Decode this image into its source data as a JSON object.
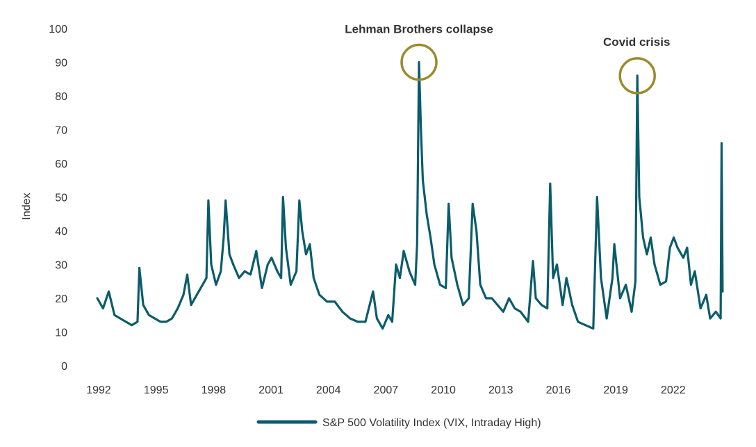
{
  "chart_data": {
    "type": "line",
    "title": "",
    "xlabel": "",
    "ylabel": "Index",
    "ylim": [
      0,
      100
    ],
    "xlim": [
      1992,
      2024.8
    ],
    "yticks": [
      0,
      10,
      20,
      30,
      40,
      50,
      60,
      70,
      80,
      90,
      100
    ],
    "xticks": [
      1992,
      1995,
      1998,
      2001,
      2004,
      2007,
      2010,
      2013,
      2016,
      2019,
      2022
    ],
    "grid": false,
    "legend": {
      "position": "bottom-center"
    },
    "series": [
      {
        "name": "S&P 500 Volatility Index (VIX, Intraday High)",
        "color": "#0b5c6b",
        "points": [
          [
            1992.0,
            20
          ],
          [
            1992.3,
            17
          ],
          [
            1992.6,
            22
          ],
          [
            1992.9,
            15
          ],
          [
            1993.2,
            14
          ],
          [
            1993.5,
            13
          ],
          [
            1993.8,
            12
          ],
          [
            1994.1,
            13
          ],
          [
            1994.2,
            29
          ],
          [
            1994.4,
            18
          ],
          [
            1994.7,
            15
          ],
          [
            1995.0,
            14
          ],
          [
            1995.3,
            13
          ],
          [
            1995.6,
            13
          ],
          [
            1995.9,
            14
          ],
          [
            1996.2,
            17
          ],
          [
            1996.5,
            21
          ],
          [
            1996.7,
            27
          ],
          [
            1996.9,
            18
          ],
          [
            1997.2,
            21
          ],
          [
            1997.5,
            24
          ],
          [
            1997.7,
            26
          ],
          [
            1997.8,
            49
          ],
          [
            1997.95,
            30
          ],
          [
            1998.2,
            24
          ],
          [
            1998.45,
            28
          ],
          [
            1998.6,
            38
          ],
          [
            1998.7,
            49
          ],
          [
            1998.9,
            33
          ],
          [
            1999.1,
            30
          ],
          [
            1999.4,
            26
          ],
          [
            1999.7,
            28
          ],
          [
            2000.0,
            27
          ],
          [
            2000.3,
            34
          ],
          [
            2000.6,
            23
          ],
          [
            2000.9,
            30
          ],
          [
            2001.1,
            32
          ],
          [
            2001.4,
            28
          ],
          [
            2001.6,
            26
          ],
          [
            2001.7,
            50
          ],
          [
            2001.85,
            35
          ],
          [
            2002.1,
            24
          ],
          [
            2002.4,
            28
          ],
          [
            2002.55,
            49
          ],
          [
            2002.7,
            40
          ],
          [
            2002.9,
            33
          ],
          [
            2003.1,
            36
          ],
          [
            2003.3,
            26
          ],
          [
            2003.6,
            21
          ],
          [
            2004.0,
            19
          ],
          [
            2004.4,
            19
          ],
          [
            2004.8,
            16
          ],
          [
            2005.2,
            14
          ],
          [
            2005.6,
            13
          ],
          [
            2006.0,
            13
          ],
          [
            2006.4,
            22
          ],
          [
            2006.6,
            14
          ],
          [
            2006.9,
            11
          ],
          [
            2007.2,
            15
          ],
          [
            2007.4,
            13
          ],
          [
            2007.6,
            30
          ],
          [
            2007.8,
            26
          ],
          [
            2008.0,
            34
          ],
          [
            2008.3,
            28
          ],
          [
            2008.6,
            24
          ],
          [
            2008.7,
            36
          ],
          [
            2008.8,
            90
          ],
          [
            2008.9,
            70
          ],
          [
            2009.0,
            55
          ],
          [
            2009.2,
            45
          ],
          [
            2009.4,
            38
          ],
          [
            2009.6,
            30
          ],
          [
            2009.9,
            24
          ],
          [
            2010.2,
            23
          ],
          [
            2010.35,
            48
          ],
          [
            2010.5,
            32
          ],
          [
            2010.8,
            24
          ],
          [
            2011.1,
            18
          ],
          [
            2011.4,
            20
          ],
          [
            2011.6,
            48
          ],
          [
            2011.8,
            40
          ],
          [
            2012.0,
            24
          ],
          [
            2012.3,
            20
          ],
          [
            2012.6,
            20
          ],
          [
            2012.9,
            18
          ],
          [
            2013.2,
            16
          ],
          [
            2013.5,
            20
          ],
          [
            2013.8,
            17
          ],
          [
            2014.1,
            16
          ],
          [
            2014.5,
            13
          ],
          [
            2014.75,
            31
          ],
          [
            2014.9,
            20
          ],
          [
            2015.2,
            18
          ],
          [
            2015.5,
            17
          ],
          [
            2015.65,
            54
          ],
          [
            2015.8,
            26
          ],
          [
            2016.0,
            30
          ],
          [
            2016.3,
            18
          ],
          [
            2016.5,
            26
          ],
          [
            2016.8,
            18
          ],
          [
            2017.1,
            13
          ],
          [
            2017.5,
            12
          ],
          [
            2017.9,
            11
          ],
          [
            2018.1,
            50
          ],
          [
            2018.3,
            26
          ],
          [
            2018.6,
            14
          ],
          [
            2018.9,
            26
          ],
          [
            2019.0,
            36
          ],
          [
            2019.3,
            20
          ],
          [
            2019.6,
            24
          ],
          [
            2019.9,
            16
          ],
          [
            2020.1,
            25
          ],
          [
            2020.2,
            86
          ],
          [
            2020.3,
            50
          ],
          [
            2020.5,
            38
          ],
          [
            2020.7,
            33
          ],
          [
            2020.9,
            38
          ],
          [
            2021.1,
            30
          ],
          [
            2021.4,
            24
          ],
          [
            2021.7,
            25
          ],
          [
            2021.9,
            35
          ],
          [
            2022.1,
            38
          ],
          [
            2022.3,
            35
          ],
          [
            2022.6,
            32
          ],
          [
            2022.8,
            35
          ],
          [
            2023.0,
            24
          ],
          [
            2023.2,
            28
          ],
          [
            2023.5,
            17
          ],
          [
            2023.8,
            21
          ],
          [
            2024.0,
            14
          ],
          [
            2024.3,
            16
          ],
          [
            2024.55,
            14
          ],
          [
            2024.6,
            66
          ],
          [
            2024.65,
            22
          ]
        ]
      }
    ],
    "annotations": [
      {
        "label": "Lehman Brothers collapse",
        "x": 2008.8,
        "y": 90
      },
      {
        "label": "Covid crisis",
        "x": 2020.2,
        "y": 86
      }
    ]
  }
}
